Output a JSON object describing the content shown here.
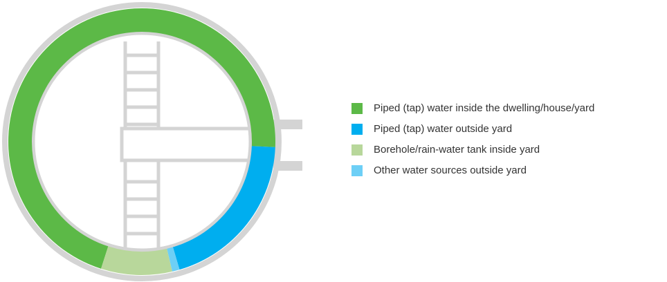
{
  "chart_data": {
    "type": "donut",
    "categories": [
      "Piped (tap) water inside the dwelling/house/yard",
      "Piped (tap) water outside yard",
      "Borehole/rain-water tank inside yard",
      "Other water sources outside yard"
    ],
    "values": [
      70.7,
      19.8,
      8.6,
      0.9
    ],
    "colors": [
      "#5cb947",
      "#00aeef",
      "#b8d79b",
      "#6dcff6"
    ],
    "legend": "right"
  }
}
